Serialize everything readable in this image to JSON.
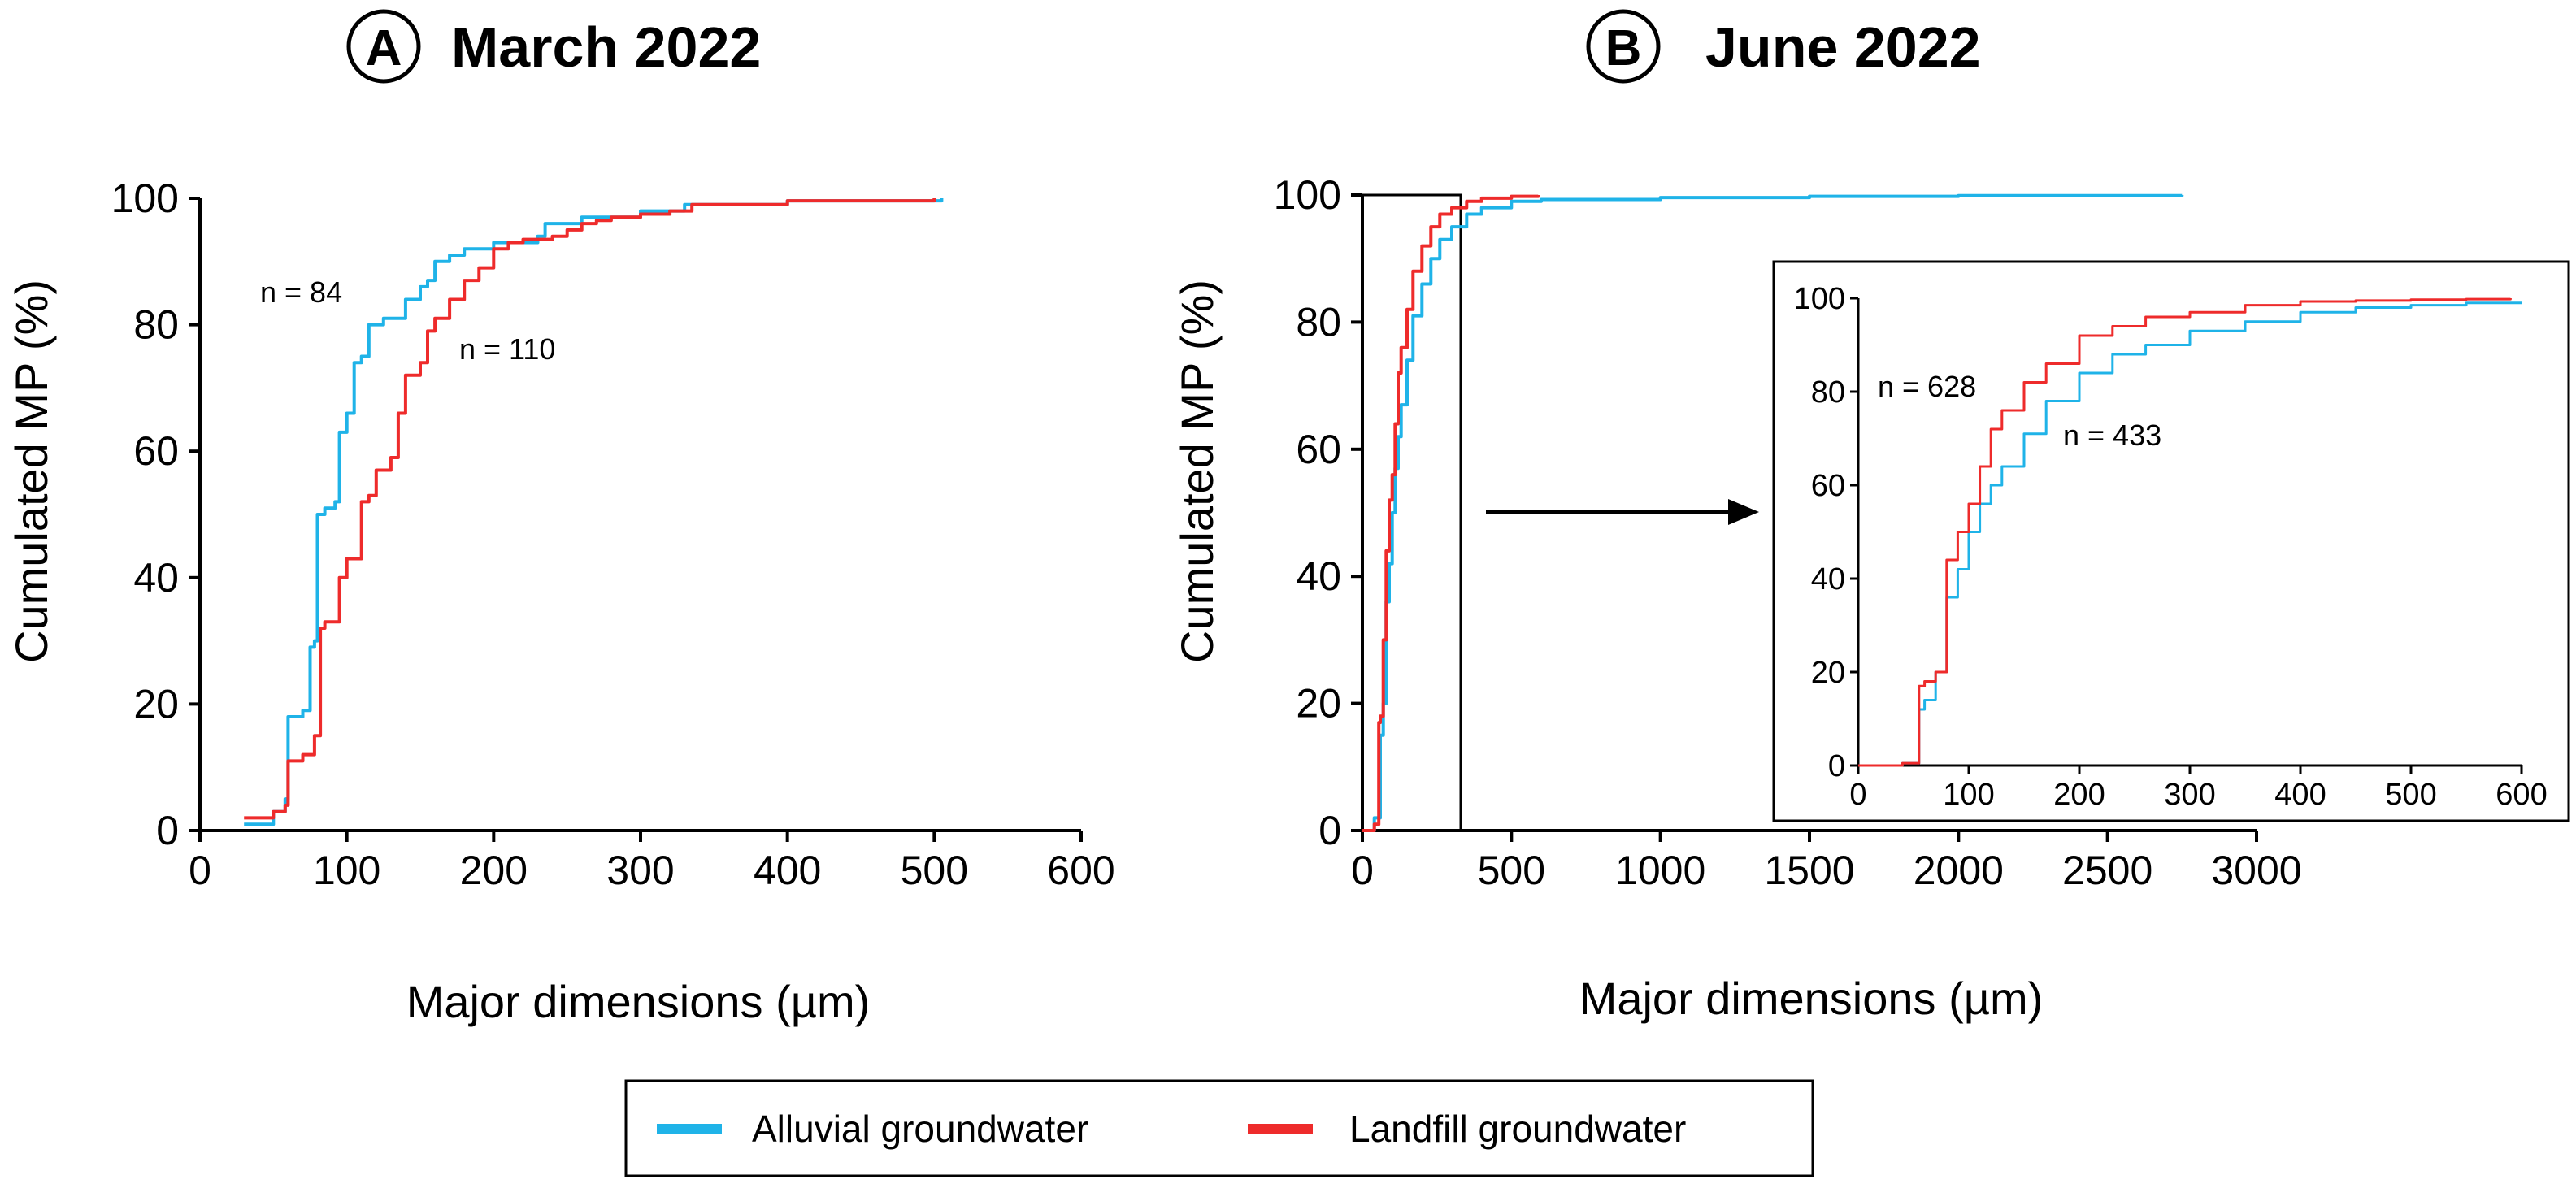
{
  "colors": {
    "alluvial": "#1fb3e8",
    "landfill": "#ee2b2b"
  },
  "legend": {
    "alluvial_label": "Alluvial groundwater",
    "landfill_label": "Landfill groundwater"
  },
  "chart_data": [
    {
      "id": "A",
      "type": "line",
      "title_letter": "A",
      "title": "March 2022",
      "xlabel": "Major dimensions (µm)",
      "ylabel": "Cumulated MP (%)",
      "xlim": [
        0,
        600
      ],
      "ylim": [
        0,
        100
      ],
      "xticks": [
        0,
        100,
        200,
        300,
        400,
        500,
        600
      ],
      "yticks": [
        0,
        20,
        40,
        60,
        80,
        100
      ],
      "annotations": [
        {
          "text": "n = 84",
          "series": "Alluvial groundwater"
        },
        {
          "text": "n = 110",
          "series": "Landfill groundwater"
        }
      ],
      "series": [
        {
          "name": "Alluvial groundwater",
          "color_key": "alluvial",
          "x": [
            30,
            50,
            58,
            60,
            70,
            75,
            78,
            80,
            85,
            92,
            95,
            100,
            105,
            110,
            115,
            125,
            140,
            150,
            155,
            160,
            170,
            180,
            200,
            220,
            230,
            235,
            260,
            300,
            330,
            400,
            505
          ],
          "y": [
            1,
            3,
            5,
            18,
            19,
            29,
            30,
            50,
            51,
            52,
            63,
            66,
            74,
            75,
            80,
            81,
            84,
            86,
            87,
            90,
            91,
            92,
            93,
            93,
            94,
            96,
            97,
            98,
            99,
            99.6,
            100
          ]
        },
        {
          "name": "Landfill groundwater",
          "color_key": "landfill",
          "x": [
            30,
            50,
            58,
            60,
            70,
            78,
            82,
            85,
            95,
            100,
            110,
            115,
            120,
            130,
            135,
            140,
            150,
            155,
            160,
            170,
            180,
            190,
            200,
            210,
            220,
            230,
            240,
            250,
            260,
            270,
            280,
            300,
            320,
            335,
            400,
            500
          ],
          "y": [
            2,
            3,
            4,
            11,
            12,
            15,
            32,
            33,
            40,
            43,
            52,
            53,
            57,
            59,
            66,
            72,
            74,
            79,
            81,
            84,
            87,
            89,
            92,
            93,
            93.5,
            93.5,
            94,
            95,
            96,
            96.5,
            97,
            97.5,
            98,
            99,
            99.6,
            100
          ]
        }
      ]
    },
    {
      "id": "B",
      "type": "line",
      "title_letter": "B",
      "title": "June 2022",
      "xlabel": "Major dimensions (µm)",
      "ylabel": "Cumulated MP (%)",
      "xlim": [
        0,
        3000
      ],
      "ylim": [
        0,
        100
      ],
      "xticks": [
        0,
        500,
        1000,
        1500,
        2000,
        2500,
        3000
      ],
      "yticks": [
        0,
        20,
        40,
        60,
        80,
        100
      ],
      "zoom_box_xlim": [
        0,
        330
      ],
      "series": [
        {
          "name": "Alluvial groundwater",
          "color_key": "alluvial",
          "x": [
            0,
            40,
            60,
            70,
            80,
            90,
            100,
            110,
            120,
            130,
            150,
            170,
            200,
            230,
            260,
            300,
            350,
            400,
            500,
            600,
            1000,
            1500,
            2000,
            2750
          ],
          "y": [
            0,
            2,
            15,
            20,
            36,
            42,
            50,
            57,
            62,
            67,
            74,
            81,
            86,
            90,
            93,
            95,
            97,
            98,
            99,
            99.3,
            99.6,
            99.8,
            99.9,
            100
          ]
        },
        {
          "name": "Landfill groundwater",
          "color_key": "landfill",
          "x": [
            0,
            40,
            55,
            60,
            70,
            80,
            90,
            100,
            110,
            120,
            130,
            150,
            170,
            200,
            230,
            260,
            300,
            350,
            400,
            500,
            590
          ],
          "y": [
            0,
            1,
            17,
            18,
            30,
            44,
            52,
            56,
            64,
            72,
            76,
            82,
            88,
            92,
            95,
            97,
            98,
            99,
            99.5,
            99.8,
            100
          ]
        }
      ]
    },
    {
      "id": "B-inset",
      "type": "line",
      "title": "",
      "xlim": [
        0,
        600
      ],
      "ylim": [
        0,
        100
      ],
      "xticks": [
        0,
        100,
        200,
        300,
        400,
        500,
        600
      ],
      "yticks": [
        0,
        20,
        40,
        60,
        80,
        100
      ],
      "annotations": [
        {
          "text": "n = 628",
          "series": "Landfill groundwater"
        },
        {
          "text": "n = 433",
          "series": "Alluvial groundwater"
        }
      ],
      "series": [
        {
          "name": "Alluvial groundwater",
          "color_key": "alluvial",
          "x": [
            0,
            40,
            55,
            60,
            70,
            80,
            90,
            100,
            110,
            120,
            130,
            150,
            170,
            200,
            230,
            260,
            300,
            350,
            400,
            450,
            500,
            550,
            600
          ],
          "y": [
            0,
            0.5,
            12,
            14,
            20,
            36,
            42,
            50,
            56,
            60,
            64,
            71,
            78,
            84,
            88,
            90,
            93,
            95,
            97,
            98,
            98.5,
            99,
            99
          ]
        },
        {
          "name": "Landfill groundwater",
          "color_key": "landfill",
          "x": [
            0,
            40,
            55,
            60,
            70,
            80,
            90,
            100,
            110,
            120,
            130,
            150,
            170,
            200,
            230,
            260,
            300,
            350,
            400,
            450,
            500,
            550,
            590
          ],
          "y": [
            0,
            0.5,
            17,
            18,
            20,
            44,
            50,
            56,
            64,
            72,
            76,
            82,
            86,
            92,
            94,
            96,
            97,
            98.5,
            99.3,
            99.5,
            99.7,
            99.8,
            100
          ]
        }
      ]
    }
  ]
}
